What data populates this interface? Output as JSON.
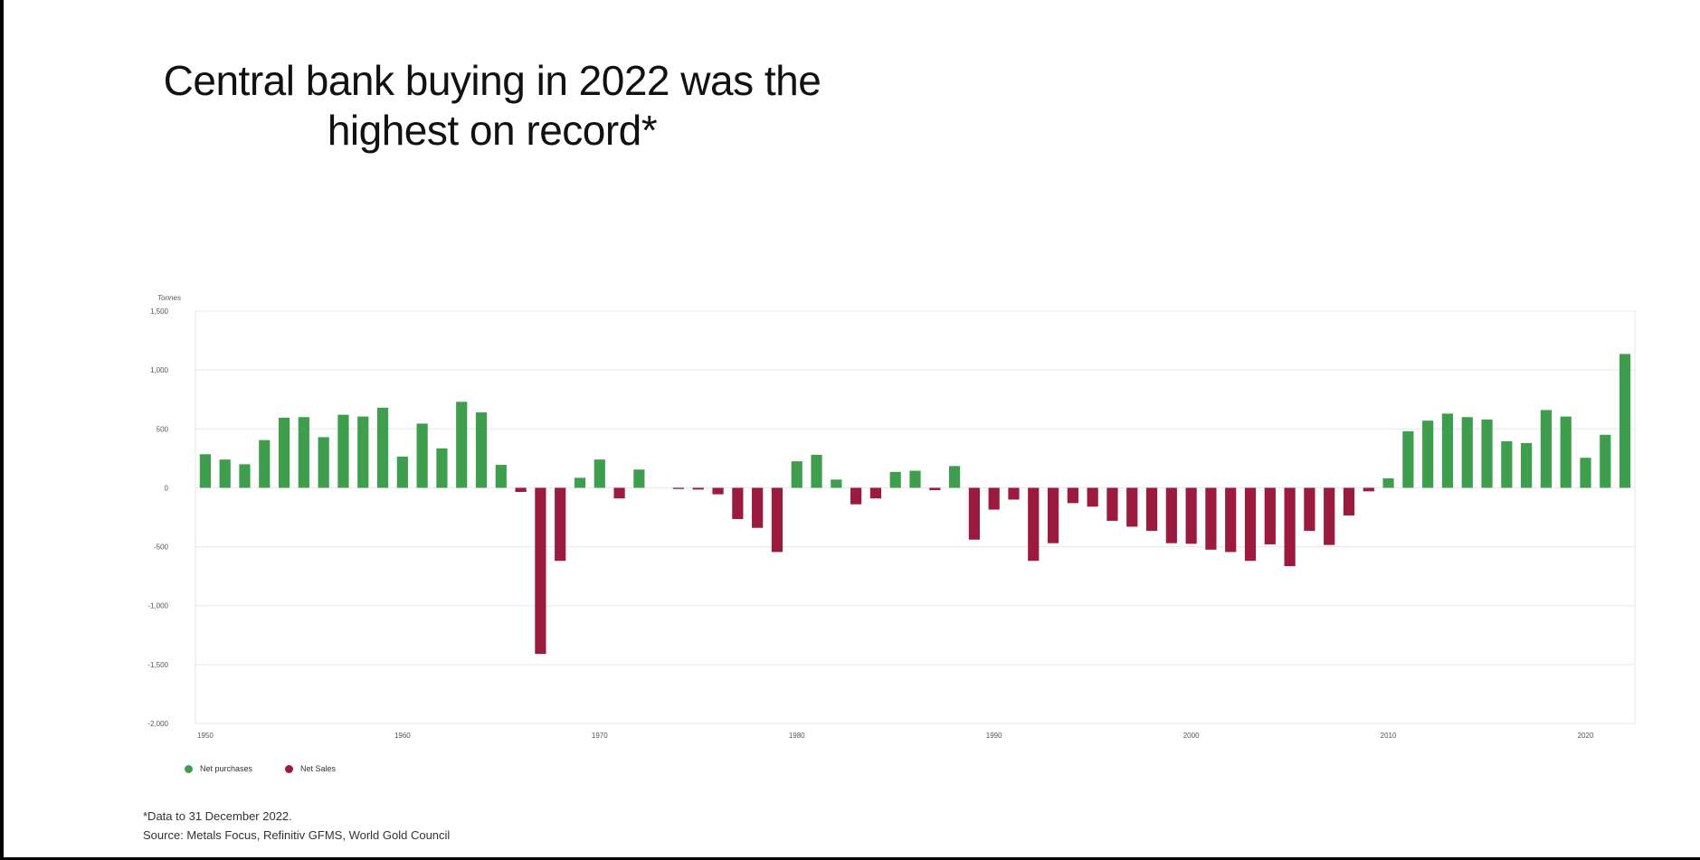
{
  "slide": {
    "title_line1": "Central bank buying in 2022 was the",
    "title_line2": "highest on record*",
    "footnote": "*Data to 31 December 2022.",
    "source": "Source: Metals Focus, Refinitiv GFMS, World Gold Council"
  },
  "colors": {
    "positive": "#3f9e4d",
    "negative": "#9b1b3f",
    "grid": "#e6e6e6",
    "axis_text": "#555555"
  },
  "chart_data": {
    "type": "bar",
    "ylabel": "Tonnes",
    "ylim": [
      -2000,
      1500
    ],
    "yticks": [
      1500,
      1000,
      500,
      0,
      -500,
      -1000,
      -1500,
      -2000
    ],
    "ytick_labels": [
      "1,500",
      "1,000",
      "500",
      "0",
      "-500",
      "-1,000",
      "-1,500",
      "-2,000"
    ],
    "xlim": [
      1949.5,
      2022.5
    ],
    "xticks": [
      1950,
      1960,
      1970,
      1980,
      1990,
      2000,
      2010,
      2020
    ],
    "xtick_labels": [
      "1950",
      "1960",
      "1970",
      "1980",
      "1990",
      "2000",
      "2010",
      "2020"
    ],
    "grid": true,
    "legend_position": "bottom-left",
    "legend": [
      {
        "label": "Net purchases",
        "color": "#3f9e4d"
      },
      {
        "label": "Net Sales",
        "color": "#9b1b3f"
      }
    ],
    "x": [
      1950,
      1951,
      1952,
      1953,
      1954,
      1955,
      1956,
      1957,
      1958,
      1959,
      1960,
      1961,
      1962,
      1963,
      1964,
      1965,
      1966,
      1967,
      1968,
      1969,
      1970,
      1971,
      1972,
      1973,
      1974,
      1975,
      1976,
      1977,
      1978,
      1979,
      1980,
      1981,
      1982,
      1983,
      1984,
      1985,
      1986,
      1987,
      1988,
      1989,
      1990,
      1991,
      1992,
      1993,
      1994,
      1995,
      1996,
      1997,
      1998,
      1999,
      2000,
      2001,
      2002,
      2003,
      2004,
      2005,
      2006,
      2007,
      2008,
      2009,
      2010,
      2011,
      2012,
      2013,
      2014,
      2015,
      2016,
      2017,
      2018,
      2019,
      2020,
      2021,
      2022
    ],
    "values": [
      285,
      240,
      200,
      405,
      595,
      600,
      430,
      620,
      605,
      680,
      265,
      545,
      335,
      730,
      640,
      195,
      -35,
      -1410,
      -620,
      85,
      240,
      -90,
      155,
      0,
      -10,
      -15,
      -55,
      -265,
      -340,
      -545,
      225,
      280,
      70,
      -140,
      -90,
      135,
      145,
      -20,
      185,
      -440,
      -185,
      -100,
      -620,
      -470,
      -130,
      -160,
      -280,
      -330,
      -365,
      -470,
      -475,
      -525,
      -545,
      -620,
      -480,
      -665,
      -365,
      -485,
      -235,
      -30,
      80,
      480,
      570,
      630,
      600,
      580,
      395,
      380,
      660,
      605,
      255,
      450,
      1136
    ]
  }
}
